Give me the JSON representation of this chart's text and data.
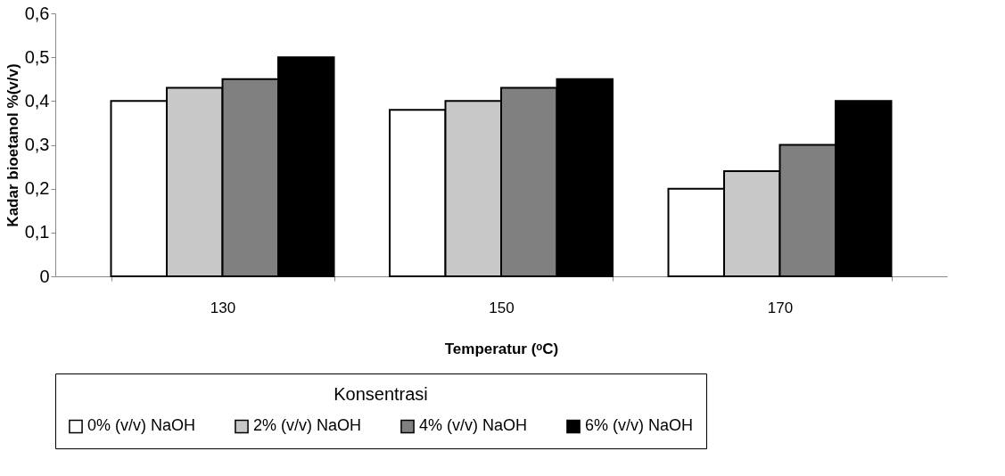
{
  "chart_data": {
    "type": "bar",
    "xlabel": "Temperatur (ᵒC)",
    "ylabel": "Kadar bioetanol %(v/v)",
    "legend_title": "Konsentrasi",
    "categories": [
      "130",
      "150",
      "170"
    ],
    "series": [
      {
        "name": "0% (v/v) NaOH",
        "color": "#ffffff",
        "values": [
          0.4,
          0.38,
          0.2
        ]
      },
      {
        "name": "2% (v/v) NaOH",
        "color": "#c8c8c8",
        "values": [
          0.43,
          0.4,
          0.24
        ]
      },
      {
        "name": "4% (v/v) NaOH",
        "color": "#808080",
        "values": [
          0.45,
          0.43,
          0.3
        ]
      },
      {
        "name": "6% (v/v) NaOH",
        "color": "#000000",
        "values": [
          0.5,
          0.45,
          0.4
        ]
      }
    ],
    "ylim": [
      0,
      0.6
    ],
    "yticks": [
      0,
      {
        "value": 0.1,
        "label": "0,1"
      },
      {
        "value": 0.2,
        "label": "0,2"
      },
      {
        "value": 0.3,
        "label": "0,3"
      },
      {
        "value": 0.4,
        "label": "0,4"
      },
      {
        "value": 0.5,
        "label": "0,5"
      },
      {
        "value": 0.6,
        "label": "0,6"
      }
    ],
    "grid": false,
    "legend": "bottom"
  }
}
